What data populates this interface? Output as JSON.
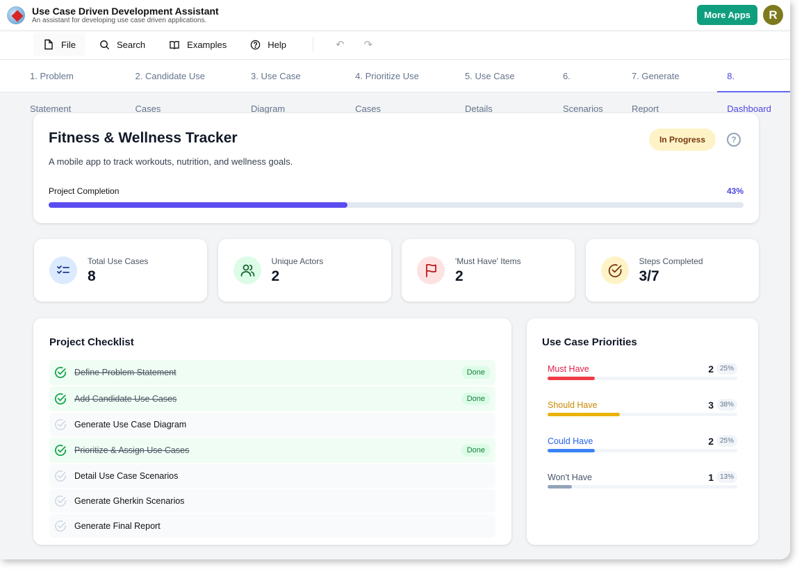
{
  "app": {
    "title": "Use Case Driven Development Assistant",
    "subtitle": "An assistant for developing use case driven applications.",
    "more_apps": "More Apps",
    "avatar": "R"
  },
  "toolbar": {
    "file": "File",
    "search": "Search",
    "examples": "Examples",
    "help": "Help"
  },
  "tabs": [
    "1. Problem Statement",
    "2. Candidate Use Cases",
    "3. Use Case Diagram",
    "4. Prioritize Use Cases",
    "5. Use Case Details",
    "6. Scenarios",
    "7. Generate Report",
    "8. Dashboard"
  ],
  "project": {
    "title": "Fitness & Wellness Tracker",
    "description": "A mobile app to track workouts, nutrition, and wellness goals.",
    "status": "In Progress",
    "completion_label": "Project Completion",
    "completion": "43%",
    "completion_value": 43
  },
  "stats": [
    {
      "label": "Total Use Cases",
      "value": "8",
      "icon": "checklist-icon",
      "bg": "#dbeafe",
      "fg": "#1e3a8a"
    },
    {
      "label": "Unique Actors",
      "value": "2",
      "icon": "users-icon",
      "bg": "#dcfce7",
      "fg": "#166534"
    },
    {
      "label": "'Must Have' Items",
      "value": "2",
      "icon": "flag-icon",
      "bg": "#fee2e2",
      "fg": "#b91c1c"
    },
    {
      "label": "Steps Completed",
      "value": "3/7",
      "icon": "check-circle-icon",
      "bg": "#fef3c7",
      "fg": "#78350f"
    }
  ],
  "checklist": {
    "title": "Project Checklist",
    "done_label": "Done",
    "items": [
      {
        "text": "Define Problem Statement",
        "done": true
      },
      {
        "text": "Add Candidate Use Cases",
        "done": true
      },
      {
        "text": "Generate Use Case Diagram",
        "done": false
      },
      {
        "text": "Prioritize & Assign Use Cases",
        "done": true
      },
      {
        "text": "Detail Use Case Scenarios",
        "done": false
      },
      {
        "text": "Generate Gherkin Scenarios",
        "done": false
      },
      {
        "text": "Generate Final Report",
        "done": false
      }
    ]
  },
  "priorities": {
    "title": "Use Case Priorities",
    "items": [
      {
        "label": "Must Have",
        "count": "2",
        "pct": "25%",
        "value": 25,
        "color": "#e11d48",
        "bar": "#ef3b45"
      },
      {
        "label": "Should Have",
        "count": "3",
        "pct": "38%",
        "value": 38,
        "color": "#ca8a04",
        "bar": "#eab308"
      },
      {
        "label": "Could Have",
        "count": "2",
        "pct": "25%",
        "value": 25,
        "color": "#2563eb",
        "bar": "#3b82f6"
      },
      {
        "label": "Won't Have",
        "count": "1",
        "pct": "13%",
        "value": 13,
        "color": "#475569",
        "bar": "#94a3b8"
      }
    ]
  }
}
